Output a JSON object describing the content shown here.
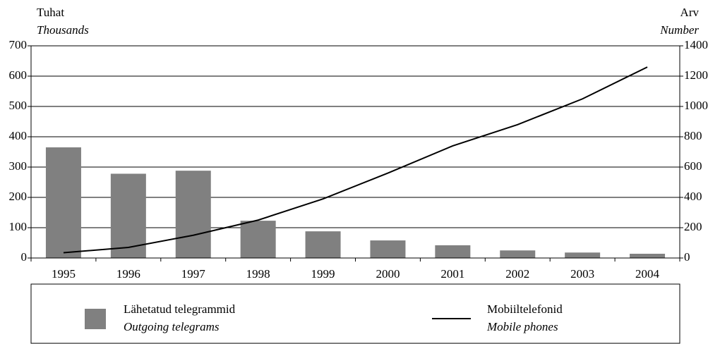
{
  "chart_data": {
    "type": "bar-line",
    "y_label": {
      "et": "Tuhat",
      "en": "Thousands"
    },
    "y2_label": {
      "et": "Arv",
      "en": "Number"
    },
    "categories": [
      "1995",
      "1996",
      "1997",
      "1998",
      "1999",
      "2000",
      "2001",
      "2002",
      "2003",
      "2004"
    ],
    "series": [
      {
        "name": "Lähetatud telegrammid",
        "name_en": "Outgoing telegrams",
        "type": "bar",
        "color": "#808080",
        "values": [
          365,
          278,
          288,
          123,
          88,
          58,
          42,
          25,
          18,
          14
        ]
      },
      {
        "name": "Mobiiltelefonid",
        "name_en": "Mobile phones",
        "type": "line",
        "color": "#000000",
        "axis": "y2",
        "values": [
          35,
          70,
          150,
          250,
          390,
          560,
          740,
          880,
          1050,
          1260
        ]
      }
    ],
    "ylim": [
      0,
      700
    ],
    "yticks": [
      0,
      100,
      200,
      300,
      400,
      500,
      600,
      700
    ],
    "y2lim": [
      0,
      1400
    ],
    "y2ticks": [
      0,
      200,
      400,
      600,
      800,
      1000,
      1200,
      1400
    ],
    "grid": true
  }
}
